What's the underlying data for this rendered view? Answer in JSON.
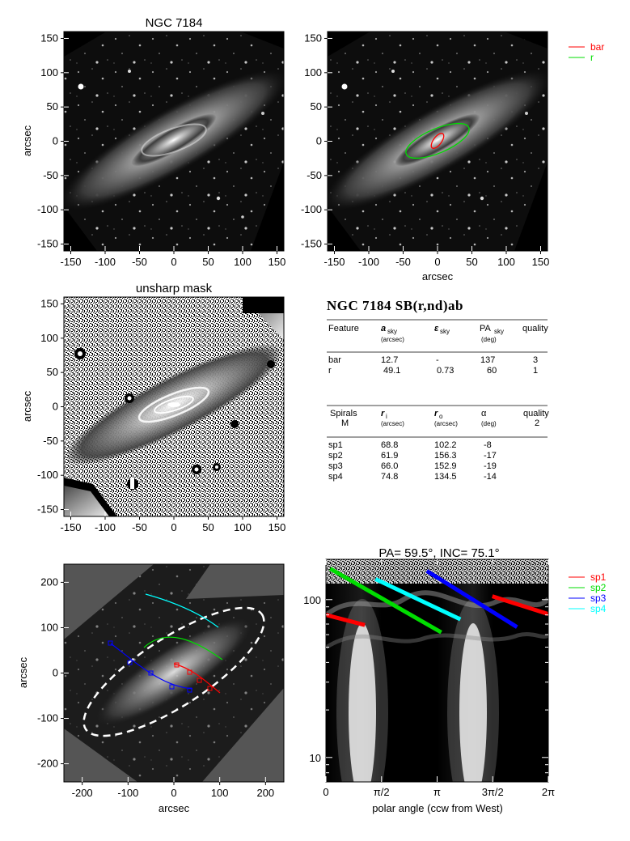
{
  "panel1": {
    "title": "NGC 7184",
    "ylabel": "arcsec"
  },
  "panel2": {
    "xlabel": "arcsec",
    "legend": [
      {
        "name": "bar",
        "color": "#ff0000"
      },
      {
        "name": "r",
        "color": "#00dd00"
      }
    ]
  },
  "panel3": {
    "title": "unsharp mask",
    "ylabel": "arcsec"
  },
  "panel5": {
    "xlabel": "arcsec",
    "ylabel": "arcsec"
  },
  "panel6": {
    "title": "PA= 59.5°, INC= 75.1°",
    "xlabel": "polar angle (ccw from West)",
    "legend": [
      {
        "name": "sp1",
        "color": "#ff0000"
      },
      {
        "name": "sp2",
        "color": "#00dd00"
      },
      {
        "name": "sp3",
        "color": "#0000ff"
      },
      {
        "name": "sp4",
        "color": "#00ffff"
      }
    ]
  },
  "ticks": {
    "imgx": [
      "-150",
      "-100",
      "-50",
      "0",
      "50",
      "100",
      "150"
    ],
    "imgy": [
      "150",
      "100",
      "50",
      "0",
      "-50",
      "-100",
      "-150"
    ],
    "p5x": [
      "-200",
      "-100",
      "0",
      "100",
      "200"
    ],
    "p5y": [
      "200",
      "100",
      "0",
      "-100",
      "-200"
    ],
    "p6x": [
      "0",
      "π/2",
      "π",
      "3π/2",
      "2π"
    ],
    "p6y": [
      "100",
      "10"
    ]
  },
  "table": {
    "header": "NGC 7184  SB(r,nd)ab",
    "t1_cols": [
      "Feature",
      "a",
      "ε",
      "PA",
      "quality"
    ],
    "t1_subs": [
      "(arcsec)",
      "(deg)"
    ],
    "t1_colsubs": [
      "sky",
      "sky",
      "sky"
    ],
    "t1_rows": [
      [
        "bar",
        "12.7",
        "-",
        "137",
        "3"
      ],
      [
        "r",
        "49.1",
        "0.73",
        "60",
        "1"
      ]
    ],
    "t2_cols": [
      "Spirals",
      "r",
      "r",
      "α",
      "quality"
    ],
    "t2_colsubs": [
      "i",
      "o"
    ],
    "t2_subs": [
      "M",
      "(arcsec)",
      "(arcsec)",
      "(deg)",
      "2"
    ],
    "t2_rows": [
      [
        "sp1",
        "68.8",
        "102.2",
        "-8"
      ],
      [
        "sp2",
        "61.9",
        "156.3",
        "-17"
      ],
      [
        "sp3",
        "66.0",
        "152.9",
        "-19"
      ],
      [
        "sp4",
        "74.8",
        "134.5",
        "-14"
      ]
    ]
  },
  "chart_data": [
    {
      "type": "image",
      "title": "NGC 7184",
      "ylabel": "arcsec",
      "xlim": [
        -160,
        160
      ],
      "ylim": [
        -160,
        160
      ]
    },
    {
      "type": "image",
      "xlabel": "arcsec",
      "xlim": [
        -160,
        160
      ],
      "ylim": [
        -160,
        160
      ],
      "overlays": [
        {
          "name": "bar",
          "a_arcsec": 12.7,
          "pa_deg": 137
        },
        {
          "name": "r",
          "a_arcsec": 49.1,
          "ellipticity": 0.73,
          "pa_deg": 60
        }
      ]
    },
    {
      "type": "image",
      "title": "unsharp mask",
      "ylabel": "arcsec",
      "xlim": [
        -160,
        160
      ],
      "ylim": [
        -160,
        160
      ]
    },
    {
      "type": "image",
      "xlabel": "arcsec",
      "ylabel": "arcsec",
      "xlim": [
        -240,
        240
      ],
      "ylim": [
        -240,
        240
      ]
    },
    {
      "type": "line",
      "title": "PA= 59.5°, INC= 75.1°",
      "xlabel": "polar angle (ccw from West)",
      "xlim": [
        0,
        6.2832
      ],
      "yscale": "log",
      "ylim": [
        7,
        180
      ],
      "series": [
        {
          "name": "sp1",
          "color": "#ff0000",
          "segments": [
            [
              [
                0.0,
                80
              ],
              [
                1.1,
                69
              ]
            ],
            [
              [
                4.7,
                105
              ],
              [
                6.28,
                81
              ]
            ]
          ]
        },
        {
          "name": "sp2",
          "color": "#00dd00",
          "segments": [
            [
              [
                0.12,
                157
              ],
              [
                3.26,
                62
              ]
            ]
          ]
        },
        {
          "name": "sp3",
          "color": "#0000ff",
          "segments": [
            [
              [
                2.85,
                152
              ],
              [
                5.4,
                67
              ]
            ]
          ]
        },
        {
          "name": "sp4",
          "color": "#00ffff",
          "segments": [
            [
              [
                1.4,
                135
              ],
              [
                3.8,
                75
              ]
            ]
          ]
        }
      ]
    }
  ]
}
